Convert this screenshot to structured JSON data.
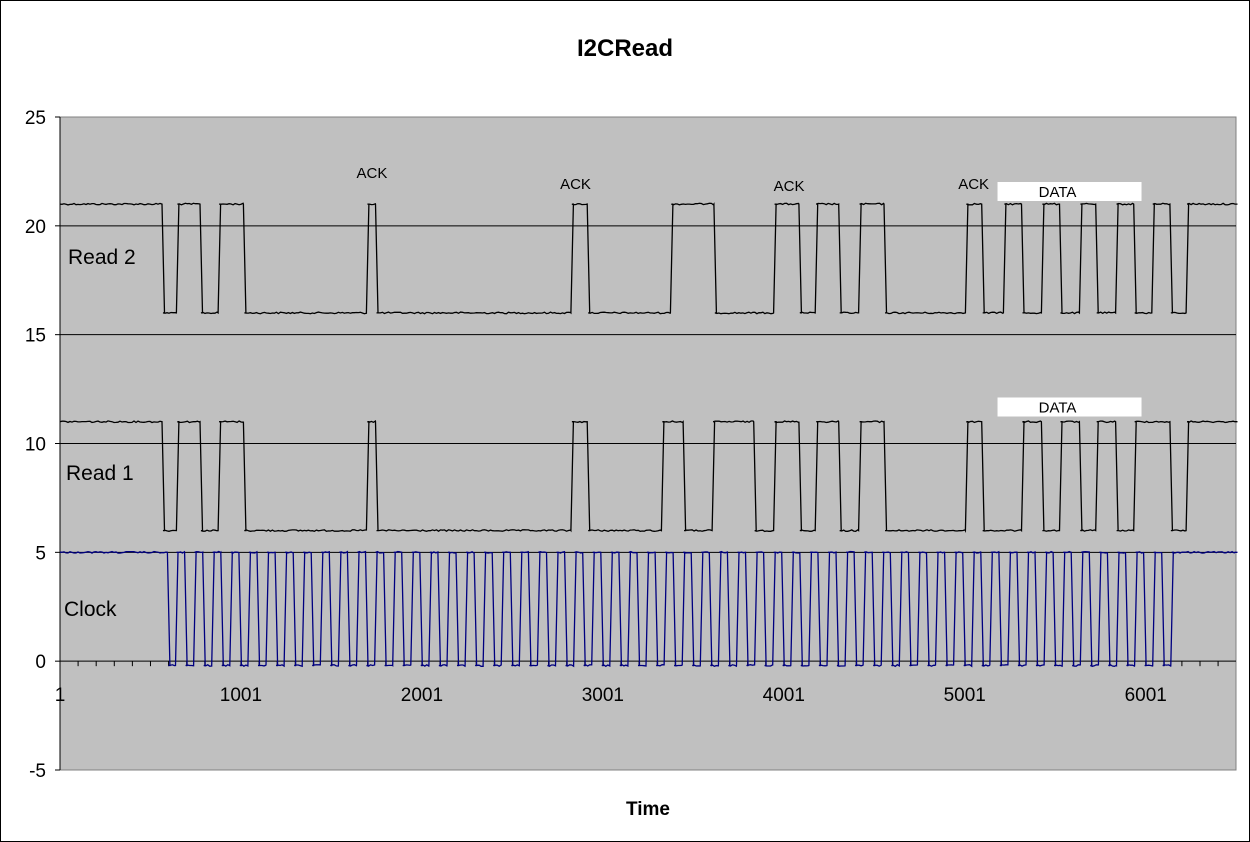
{
  "chart_data": {
    "type": "line",
    "title": "I2CRead",
    "xlabel": "Time",
    "ylabel": "",
    "xlim": [
      1,
      6500
    ],
    "ylim": [
      -5,
      25
    ],
    "y_ticks": [
      -5,
      0,
      5,
      10,
      15,
      20,
      25
    ],
    "x_ticks": [
      1,
      1001,
      2001,
      3001,
      4001,
      5001,
      6001
    ],
    "x_tick_labels": [
      "1",
      "1001",
      "2001",
      "3001",
      "4001",
      "5001",
      "6001"
    ],
    "grid": "horizontal",
    "plot_background": "#c0c0c0",
    "series": [
      {
        "name": "Read 2",
        "color": "#000000",
        "high": 21,
        "low": 16,
        "transitions": [
          [
            1,
            21
          ],
          [
            570,
            16
          ],
          [
            650,
            21
          ],
          [
            780,
            16
          ],
          [
            880,
            21
          ],
          [
            1020,
            16
          ],
          [
            1700,
            21
          ],
          [
            1750,
            16
          ],
          [
            2830,
            21
          ],
          [
            2920,
            16
          ],
          [
            3380,
            21
          ],
          [
            3620,
            16
          ],
          [
            3950,
            21
          ],
          [
            4090,
            16
          ],
          [
            4180,
            21
          ],
          [
            4310,
            16
          ],
          [
            4420,
            21
          ],
          [
            4560,
            16
          ],
          [
            5010,
            21
          ],
          [
            5100,
            16
          ],
          [
            5220,
            21
          ],
          [
            5320,
            16
          ],
          [
            5430,
            21
          ],
          [
            5530,
            16
          ],
          [
            5640,
            21
          ],
          [
            5730,
            16
          ],
          [
            5840,
            21
          ],
          [
            5940,
            16
          ],
          [
            6040,
            21
          ],
          [
            6140,
            16
          ],
          [
            6230,
            21
          ],
          [
            6500,
            21
          ]
        ]
      },
      {
        "name": "Read 1",
        "color": "#000000",
        "high": 11,
        "low": 6,
        "transitions": [
          [
            1,
            11
          ],
          [
            570,
            6
          ],
          [
            650,
            11
          ],
          [
            780,
            6
          ],
          [
            880,
            11
          ],
          [
            1020,
            6
          ],
          [
            1700,
            11
          ],
          [
            1750,
            6
          ],
          [
            2830,
            11
          ],
          [
            2920,
            6
          ],
          [
            3330,
            11
          ],
          [
            3450,
            6
          ],
          [
            3610,
            11
          ],
          [
            3840,
            6
          ],
          [
            3950,
            11
          ],
          [
            4090,
            6
          ],
          [
            4180,
            11
          ],
          [
            4310,
            6
          ],
          [
            4420,
            11
          ],
          [
            4560,
            6
          ],
          [
            5010,
            11
          ],
          [
            5100,
            6
          ],
          [
            5320,
            11
          ],
          [
            5430,
            6
          ],
          [
            5530,
            11
          ],
          [
            5640,
            6
          ],
          [
            5730,
            11
          ],
          [
            5840,
            6
          ],
          [
            5940,
            11
          ],
          [
            6140,
            6
          ],
          [
            6230,
            11
          ],
          [
            6500,
            11
          ]
        ]
      },
      {
        "name": "Clock",
        "color": "#000080",
        "high": 5,
        "low": -0.2,
        "start_high_until": 600,
        "pulses_start": 600,
        "pulse_period": 100,
        "pulse_count": 56,
        "end_high_from": 6180,
        "end_value": 5
      }
    ],
    "annotations": [
      "ACK",
      "ACK",
      "ACK",
      "ACK",
      "DATA",
      "DATA"
    ]
  },
  "annotation_points": [
    {
      "x": 1725,
      "y": 22.2
    },
    {
      "x": 2850,
      "y": 21.7
    },
    {
      "x": 4030,
      "y": 21.6
    },
    {
      "x": 5050,
      "y": 21.7
    },
    {
      "x": 5580,
      "y": 21.6
    },
    {
      "x": 5580,
      "y": 11.7
    }
  ]
}
